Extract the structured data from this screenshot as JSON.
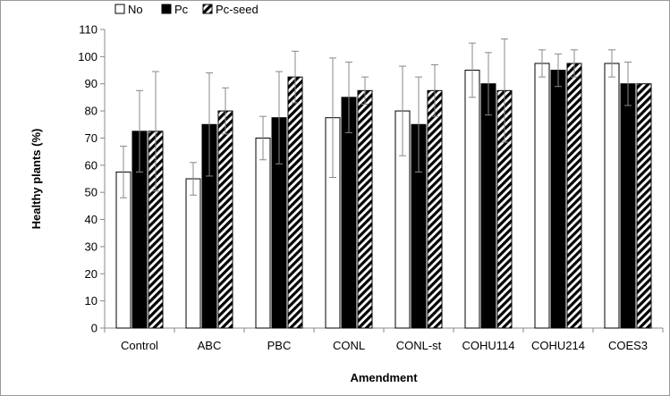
{
  "chart_data": {
    "type": "bar",
    "xlabel": "Amendment",
    "ylabel": "Healthy plants (%)",
    "ylim": [
      0,
      110
    ],
    "yticks": [
      0,
      10,
      20,
      30,
      40,
      50,
      60,
      70,
      80,
      90,
      100,
      110
    ],
    "grid": false,
    "legend_position": "top-left",
    "categories": [
      "Control",
      "ABC",
      "PBC",
      "CONL",
      "CONL-st",
      "COHU114",
      "COHU214",
      "COES3"
    ],
    "series": [
      {
        "name": "No",
        "style": "open",
        "values": [
          57.5,
          55,
          70,
          77.5,
          80,
          95,
          97.5,
          97.5
        ],
        "errors": [
          9.5,
          6,
          8,
          22,
          16.5,
          10,
          5,
          5
        ]
      },
      {
        "name": "Pc",
        "style": "solid",
        "values": [
          72.5,
          75,
          77.5,
          85,
          75,
          90,
          95,
          90
        ],
        "errors": [
          15,
          19,
          17,
          13,
          17.5,
          11.5,
          6,
          8
        ]
      },
      {
        "name": "Pc-seed",
        "style": "hatched",
        "values": [
          72.5,
          80,
          92.5,
          87.5,
          87.5,
          87.5,
          97.5,
          90
        ],
        "errors": [
          22,
          8.5,
          9.5,
          5,
          9.5,
          19,
          5,
          0
        ]
      }
    ],
    "colors": {
      "fill_dark": "#000000",
      "fill_light": "#ffffff",
      "stroke": "#000000",
      "error_bar": "#888888",
      "axis": "#888888"
    }
  }
}
